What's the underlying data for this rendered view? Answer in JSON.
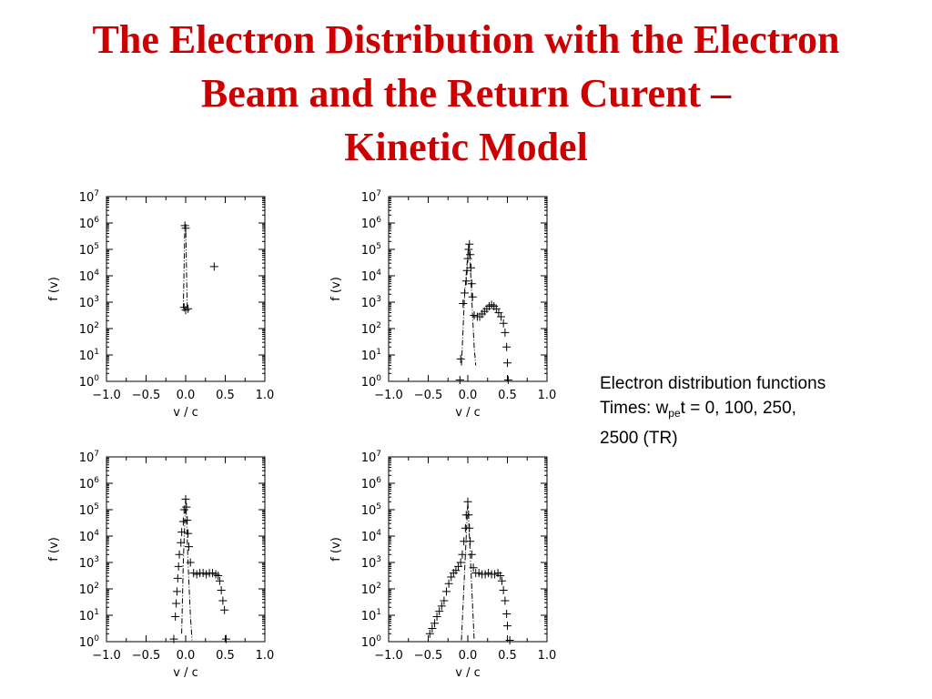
{
  "slide": {
    "title_lines": [
      "The Electron Distribution with the Electron",
      "Beam and the Return Curent –",
      "Kinetic Model"
    ],
    "caption": {
      "line1": "Electron distribution functions",
      "line2_prefix": "Times:  w",
      "line2_sub": "pe",
      "line2_suffix": "t = 0, 100, 250,",
      "line3": "2500 (TR)"
    },
    "title_color": "#cc0000"
  },
  "chart_data": [
    {
      "type": "scatter",
      "xlabel": "v / c",
      "ylabel": "f (v)",
      "xlim": [
        -1.0,
        1.0
      ],
      "ylim_log10": [
        0,
        7
      ],
      "log_y": true,
      "x_ticks": [
        "−1.0",
        "−0.5",
        "0.0",
        "0.5",
        "1.0"
      ],
      "y_tick_exponents": [
        "0",
        "1",
        "2",
        "3",
        "4",
        "5",
        "6",
        "7"
      ],
      "markers": [
        [
          -0.01,
          5.9
        ],
        [
          0.0,
          5.8
        ],
        [
          -0.02,
          2.8
        ],
        [
          0.0,
          2.7
        ],
        [
          0.03,
          2.75
        ],
        [
          0.36,
          4.35
        ]
      ],
      "curves": [
        [
          [
            -0.03,
            2.75
          ],
          [
            -0.01,
            5.85
          ],
          [
            0.0,
            5.9
          ],
          [
            0.02,
            2.75
          ]
        ]
      ]
    },
    {
      "type": "scatter",
      "xlabel": "v / c",
      "ylabel": "f (v)",
      "xlim": [
        -1.0,
        1.0
      ],
      "ylim_log10": [
        0,
        7
      ],
      "log_y": true,
      "x_ticks": [
        "−1.0",
        "−0.5",
        "0.0",
        "0.5",
        "1.0"
      ],
      "y_tick_exponents": [
        "0",
        "1",
        "2",
        "3",
        "4",
        "5",
        "6",
        "7"
      ],
      "markers": [
        [
          -0.1,
          0.05
        ],
        [
          -0.09,
          0.85
        ],
        [
          -0.06,
          2.95
        ],
        [
          -0.04,
          3.35
        ],
        [
          -0.02,
          3.8
        ],
        [
          -0.01,
          4.2
        ],
        [
          0.0,
          4.65
        ],
        [
          0.01,
          5.0
        ],
        [
          0.02,
          5.2
        ],
        [
          0.03,
          4.8
        ],
        [
          0.04,
          4.3
        ],
        [
          0.05,
          3.7
        ],
        [
          0.06,
          3.2
        ],
        [
          0.08,
          2.5
        ],
        [
          0.12,
          2.45
        ],
        [
          0.15,
          2.45
        ],
        [
          0.18,
          2.55
        ],
        [
          0.21,
          2.65
        ],
        [
          0.24,
          2.75
        ],
        [
          0.27,
          2.85
        ],
        [
          0.3,
          2.9
        ],
        [
          0.33,
          2.85
        ],
        [
          0.36,
          2.75
        ],
        [
          0.39,
          2.6
        ],
        [
          0.42,
          2.45
        ],
        [
          0.45,
          2.2
        ],
        [
          0.47,
          1.85
        ],
        [
          0.49,
          1.3
        ],
        [
          0.5,
          0.7
        ],
        [
          0.51,
          0.05
        ]
      ],
      "curves": [
        [
          [
            -0.08,
            0.6
          ],
          [
            -0.04,
            3.3
          ],
          [
            0.0,
            4.8
          ],
          [
            0.01,
            5.2
          ],
          [
            0.03,
            4.5
          ],
          [
            0.06,
            2.5
          ],
          [
            0.08,
            1.3
          ],
          [
            0.1,
            0.6
          ]
        ]
      ]
    },
    {
      "type": "scatter",
      "xlabel": "v / c",
      "ylabel": "f (v)",
      "xlim": [
        -1.0,
        1.0
      ],
      "ylim_log10": [
        0,
        7
      ],
      "log_y": true,
      "x_ticks": [
        "−1.0",
        "−0.5",
        "0.0",
        "0.5",
        "1.0"
      ],
      "y_tick_exponents": [
        "0",
        "1",
        "2",
        "3",
        "4",
        "5",
        "6",
        "7"
      ],
      "markers": [
        [
          -0.15,
          0.1
        ],
        [
          -0.13,
          0.95
        ],
        [
          -0.12,
          1.45
        ],
        [
          -0.11,
          1.9
        ],
        [
          -0.1,
          2.4
        ],
        [
          -0.09,
          2.85
        ],
        [
          -0.08,
          3.3
        ],
        [
          -0.06,
          3.75
        ],
        [
          -0.05,
          4.15
        ],
        [
          -0.03,
          4.55
        ],
        [
          -0.02,
          5.0
        ],
        [
          0.0,
          5.4
        ],
        [
          0.01,
          5.1
        ],
        [
          0.02,
          4.6
        ],
        [
          0.03,
          4.1
        ],
        [
          0.04,
          3.6
        ],
        [
          0.06,
          3.0
        ],
        [
          0.1,
          2.6
        ],
        [
          0.14,
          2.55
        ],
        [
          0.18,
          2.6
        ],
        [
          0.22,
          2.6
        ],
        [
          0.26,
          2.55
        ],
        [
          0.3,
          2.6
        ],
        [
          0.34,
          2.6
        ],
        [
          0.38,
          2.55
        ],
        [
          0.41,
          2.5
        ],
        [
          0.43,
          2.3
        ],
        [
          0.45,
          1.95
        ],
        [
          0.47,
          1.55
        ],
        [
          0.49,
          1.2
        ],
        [
          0.51,
          0.1
        ]
      ],
      "curves": [
        [
          [
            -0.05,
            0.3
          ],
          [
            -0.03,
            3.0
          ],
          [
            0.0,
            5.5
          ],
          [
            0.03,
            3.0
          ],
          [
            0.06,
            1.0
          ],
          [
            0.08,
            0.05
          ]
        ]
      ]
    },
    {
      "type": "scatter",
      "xlabel": "v / c",
      "ylabel": "f (v)",
      "xlim": [
        -1.0,
        1.0
      ],
      "ylim_log10": [
        0,
        7
      ],
      "log_y": true,
      "x_ticks": [
        "−1.0",
        "−0.5",
        "0.0",
        "0.5",
        "1.0"
      ],
      "y_tick_exponents": [
        "0",
        "1",
        "2",
        "3",
        "4",
        "5",
        "6",
        "7"
      ],
      "markers": [
        [
          -0.48,
          0.3
        ],
        [
          -0.45,
          0.5
        ],
        [
          -0.42,
          0.7
        ],
        [
          -0.39,
          0.95
        ],
        [
          -0.36,
          1.15
        ],
        [
          -0.33,
          1.35
        ],
        [
          -0.3,
          1.55
        ],
        [
          -0.27,
          1.9
        ],
        [
          -0.24,
          2.2
        ],
        [
          -0.21,
          2.45
        ],
        [
          -0.18,
          2.6
        ],
        [
          -0.15,
          2.7
        ],
        [
          -0.12,
          2.85
        ],
        [
          -0.09,
          3.0
        ],
        [
          -0.07,
          3.3
        ],
        [
          -0.05,
          3.8
        ],
        [
          -0.03,
          4.3
        ],
        [
          -0.02,
          4.8
        ],
        [
          0.0,
          5.3
        ],
        [
          0.01,
          4.8
        ],
        [
          0.02,
          4.3
        ],
        [
          0.03,
          3.8
        ],
        [
          0.05,
          3.3
        ],
        [
          0.07,
          2.8
        ],
        [
          0.1,
          2.6
        ],
        [
          0.14,
          2.6
        ],
        [
          0.18,
          2.55
        ],
        [
          0.22,
          2.55
        ],
        [
          0.26,
          2.6
        ],
        [
          0.3,
          2.55
        ],
        [
          0.34,
          2.55
        ],
        [
          0.38,
          2.6
        ],
        [
          0.41,
          2.5
        ],
        [
          0.43,
          2.3
        ],
        [
          0.45,
          1.95
        ],
        [
          0.47,
          1.55
        ],
        [
          0.49,
          1.05
        ],
        [
          0.5,
          0.6
        ],
        [
          0.53,
          0.05
        ]
      ],
      "curves": [
        [
          [
            -0.08,
            0.05
          ],
          [
            -0.05,
            2.0
          ],
          [
            0.0,
            5.3
          ],
          [
            0.05,
            2.0
          ],
          [
            0.08,
            0.05
          ]
        ]
      ]
    }
  ]
}
